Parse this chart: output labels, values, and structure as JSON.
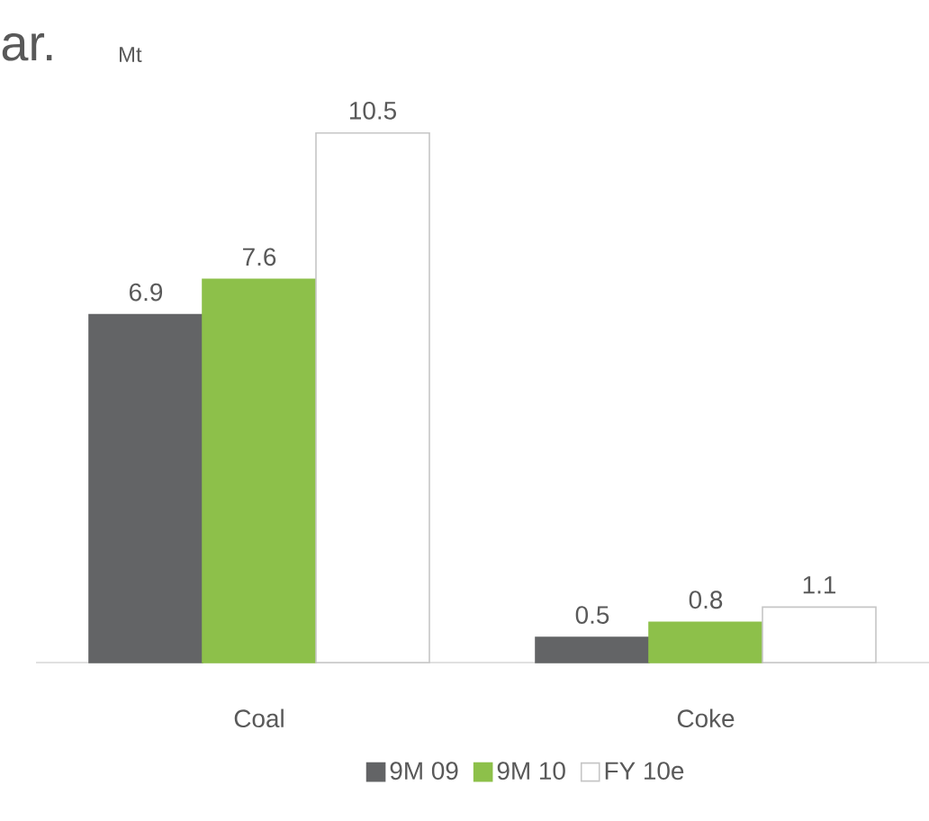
{
  "chart_data": {
    "type": "bar",
    "ylabel": "Mt",
    "annotations": [
      "ar."
    ],
    "categories": [
      "Coal",
      "Coke"
    ],
    "data_labels": true,
    "legend": "bottom",
    "tick_labels": "x",
    "series": [
      {
        "name": "9M 09",
        "color": "#636466",
        "values": [
          6.9,
          0.5
        ]
      },
      {
        "name": "9M 10",
        "color": "#8dc04a",
        "values": [
          7.6,
          0.8
        ]
      },
      {
        "name": "FY 10e",
        "color": "#ffffff",
        "values": [
          10.5,
          1.1
        ]
      }
    ]
  }
}
